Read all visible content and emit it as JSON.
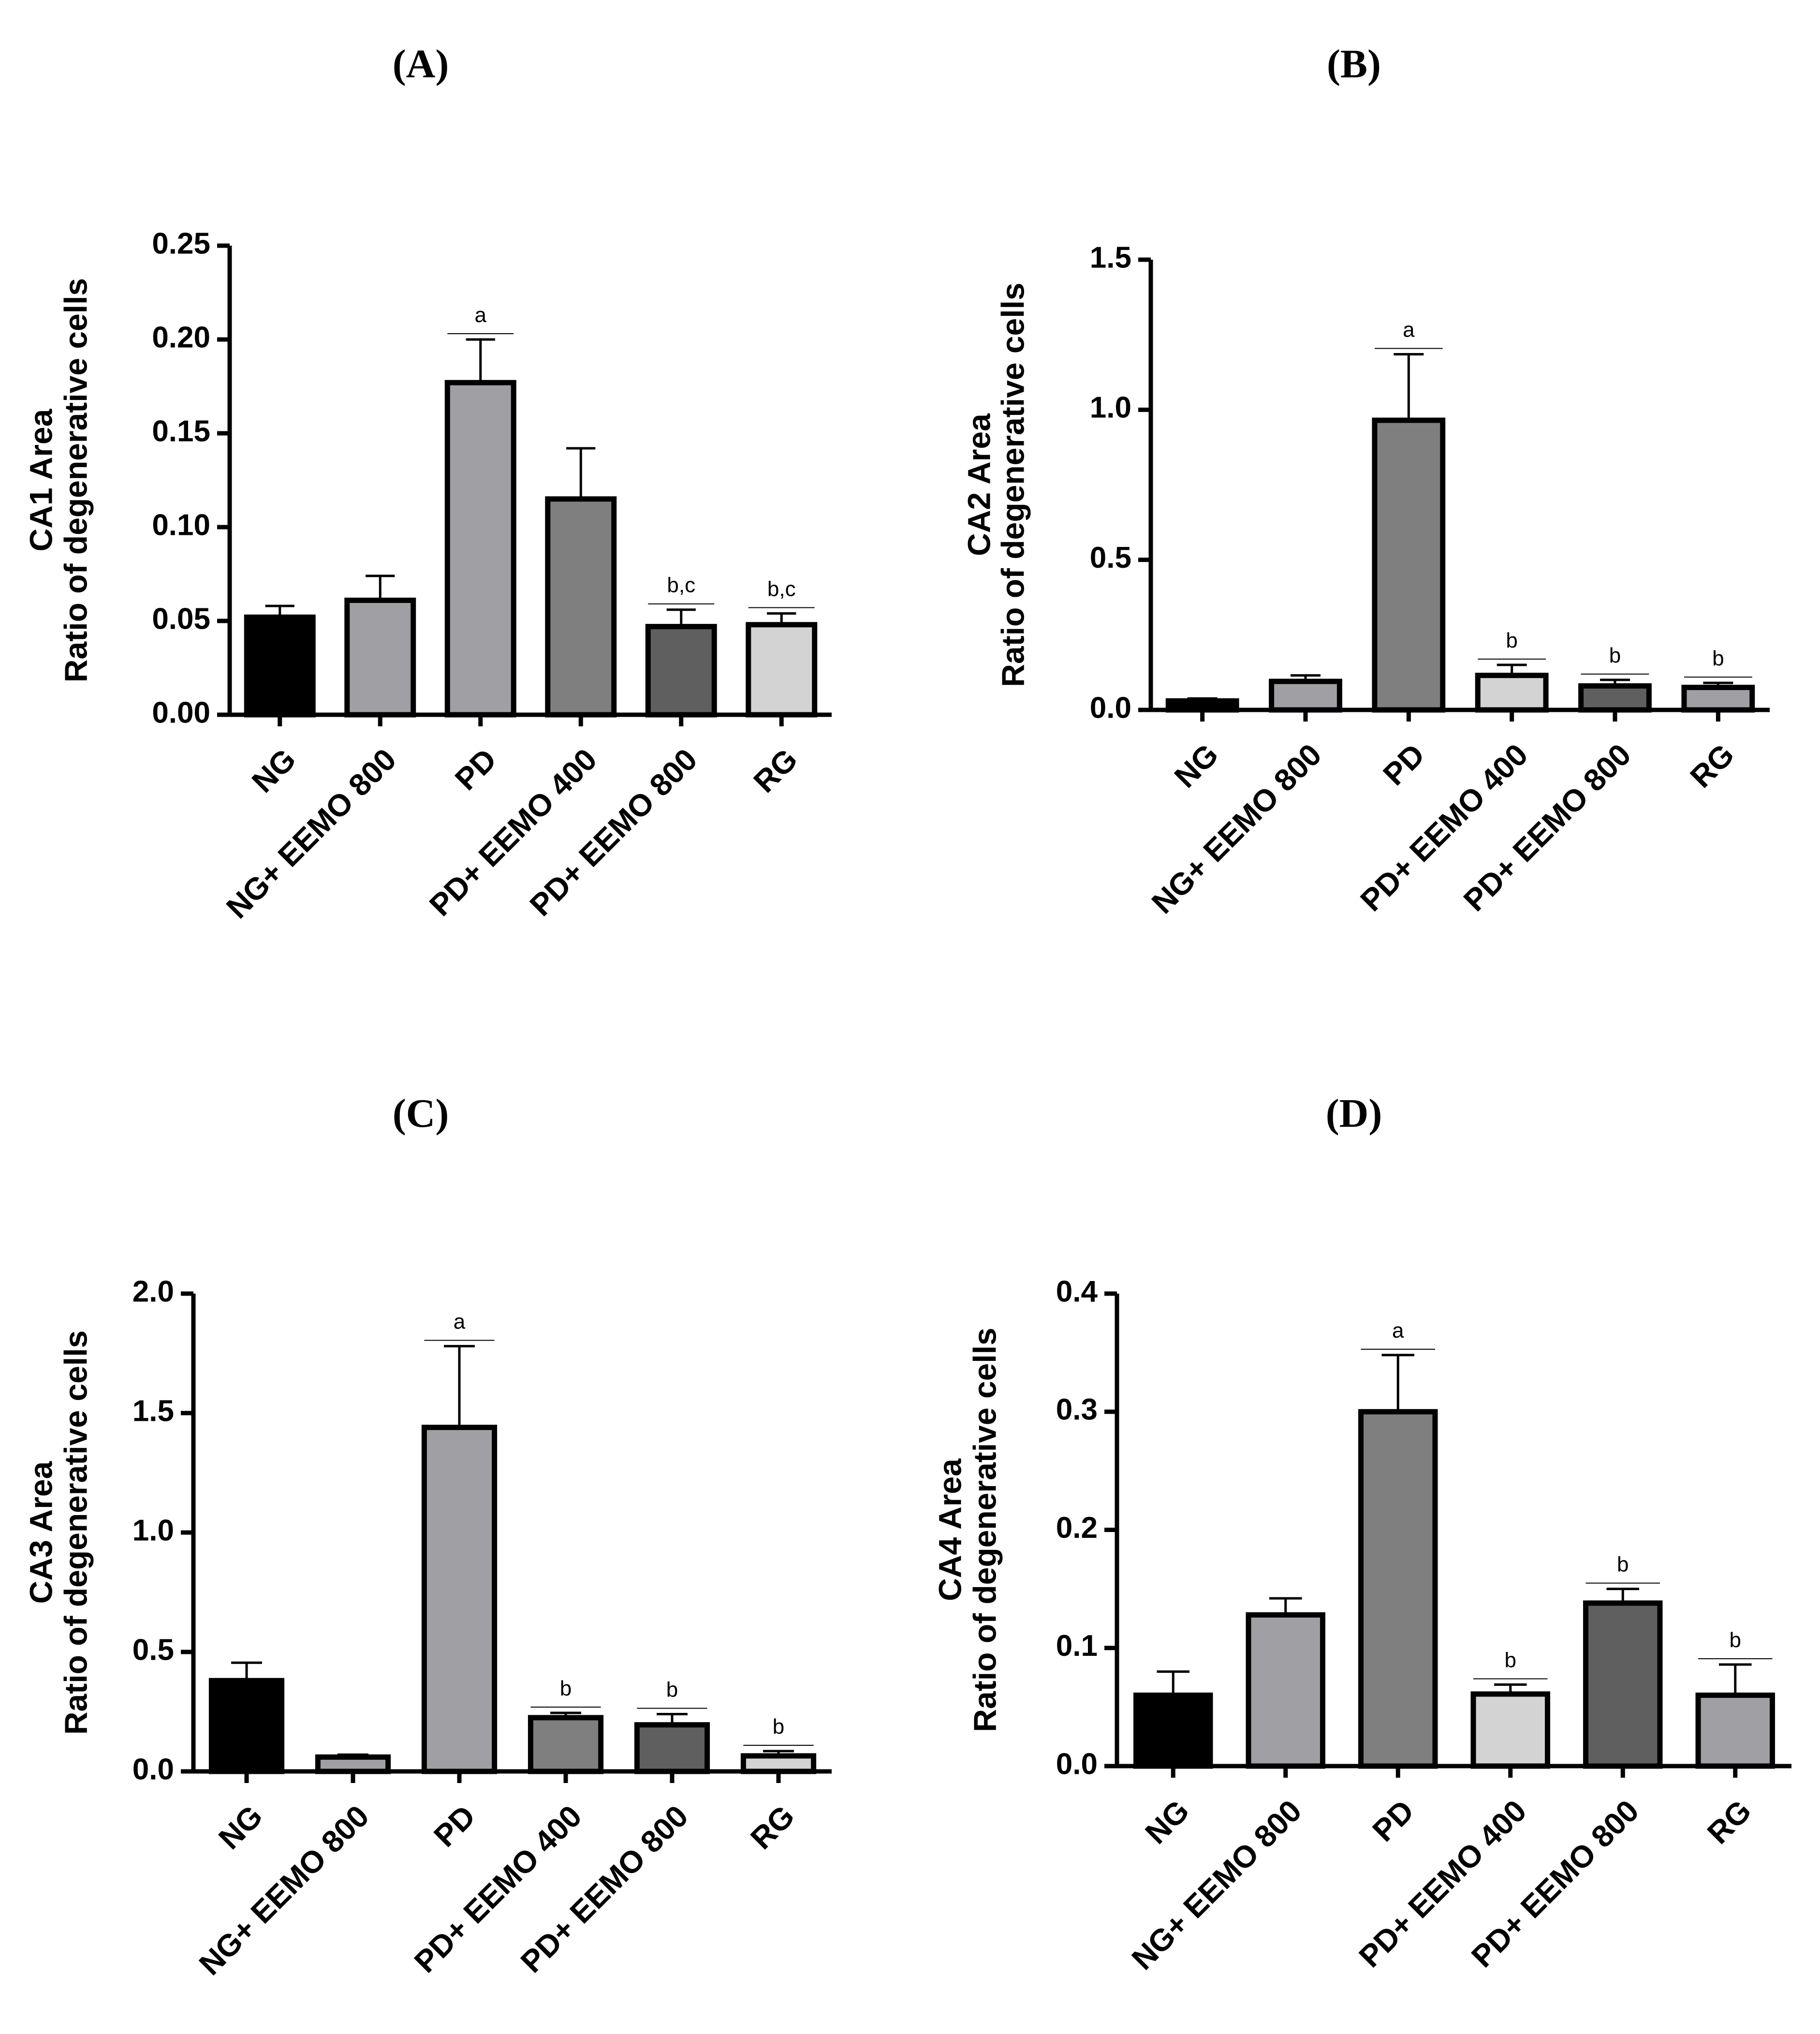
{
  "chart_data": [
    {
      "type": "bar",
      "panel_title": "(A)",
      "ylabel_line1": "CA1 Area",
      "ylabel_line2": "Ratio of degenerative cells",
      "categories": [
        "NG",
        "NG+ EEMO 800",
        "PD",
        "PD+ EEMO 400",
        "PD+ EEMO 800",
        "RG"
      ],
      "values": [
        0.052,
        0.061,
        0.177,
        0.115,
        0.047,
        0.048
      ],
      "errors": [
        0.006,
        0.013,
        0.023,
        0.027,
        0.009,
        0.006
      ],
      "significance": [
        "",
        "",
        "a",
        "",
        "b,c",
        "b,c"
      ],
      "bar_colors": [
        "#000000",
        "#a0a0a4",
        "#a0a0a4",
        "#7f7f7f",
        "#5f5f5f",
        "#d3d3d3"
      ],
      "ylim": [
        0,
        0.25
      ],
      "yticks": [
        "0.00",
        "0.05",
        "0.10",
        "0.15",
        "0.20",
        "0.25"
      ]
    },
    {
      "type": "bar",
      "panel_title": "(B)",
      "ylabel_line1": "CA2 Area",
      "ylabel_line2": "Ratio of degenerative cells",
      "categories": [
        "NG",
        "NG+ EEMO 800",
        "PD",
        "PD+ EEMO 400",
        "PD+ EEMO 800",
        "RG"
      ],
      "values": [
        0.03,
        0.095,
        0.965,
        0.115,
        0.08,
        0.075
      ],
      "errors": [
        0.008,
        0.02,
        0.22,
        0.035,
        0.02,
        0.015
      ],
      "significance": [
        "",
        "",
        "a",
        "b",
        "b",
        "b"
      ],
      "bar_colors": [
        "#000000",
        "#a0a0a4",
        "#7f7f7f",
        "#d3d3d3",
        "#5f5f5f",
        "#a0a0a4"
      ],
      "ylim": [
        0,
        1.5
      ],
      "yticks": [
        "0.0",
        "0.5",
        "1.0",
        "1.5"
      ]
    },
    {
      "type": "bar",
      "panel_title": "(C)",
      "ylabel_line1": "CA3 Area",
      "ylabel_line2": "Ratio of degenerative cells",
      "categories": [
        "NG",
        "NG+ EEMO 800",
        "PD",
        "PD+ EEMO 400",
        "PD+ EEMO 800",
        "RG"
      ],
      "values": [
        0.38,
        0.06,
        1.44,
        0.225,
        0.195,
        0.065
      ],
      "errors": [
        0.075,
        0.01,
        0.34,
        0.02,
        0.045,
        0.02
      ],
      "significance": [
        "",
        "",
        "a",
        "b",
        "b",
        "b"
      ],
      "bar_colors": [
        "#000000",
        "#a0a0a4",
        "#a0a0a4",
        "#7f7f7f",
        "#5f5f5f",
        "#d3d3d3"
      ],
      "ylim": [
        0,
        2.0
      ],
      "yticks": [
        "0.0",
        "0.5",
        "1.0",
        "1.5",
        "2.0"
      ]
    },
    {
      "type": "bar",
      "panel_title": "(D)",
      "ylabel_line1": "CA4 Area",
      "ylabel_line2": "Ratio of degenerative cells",
      "categories": [
        "NG",
        "NG+ EEMO 800",
        "PD",
        "PD+ EEMO 400",
        "PD+ EEMO 800",
        "RG"
      ],
      "values": [
        0.06,
        0.128,
        0.3,
        0.061,
        0.138,
        0.06
      ],
      "errors": [
        0.02,
        0.014,
        0.048,
        0.008,
        0.012,
        0.026
      ],
      "significance": [
        "",
        "",
        "a",
        "b",
        "b",
        "b"
      ],
      "bar_colors": [
        "#000000",
        "#a0a0a4",
        "#7f7f7f",
        "#d3d3d3",
        "#5f5f5f",
        "#a0a0a4"
      ],
      "ylim": [
        0,
        0.4
      ],
      "yticks": [
        "0.0",
        "0.1",
        "0.2",
        "0.3",
        "0.4"
      ]
    }
  ]
}
